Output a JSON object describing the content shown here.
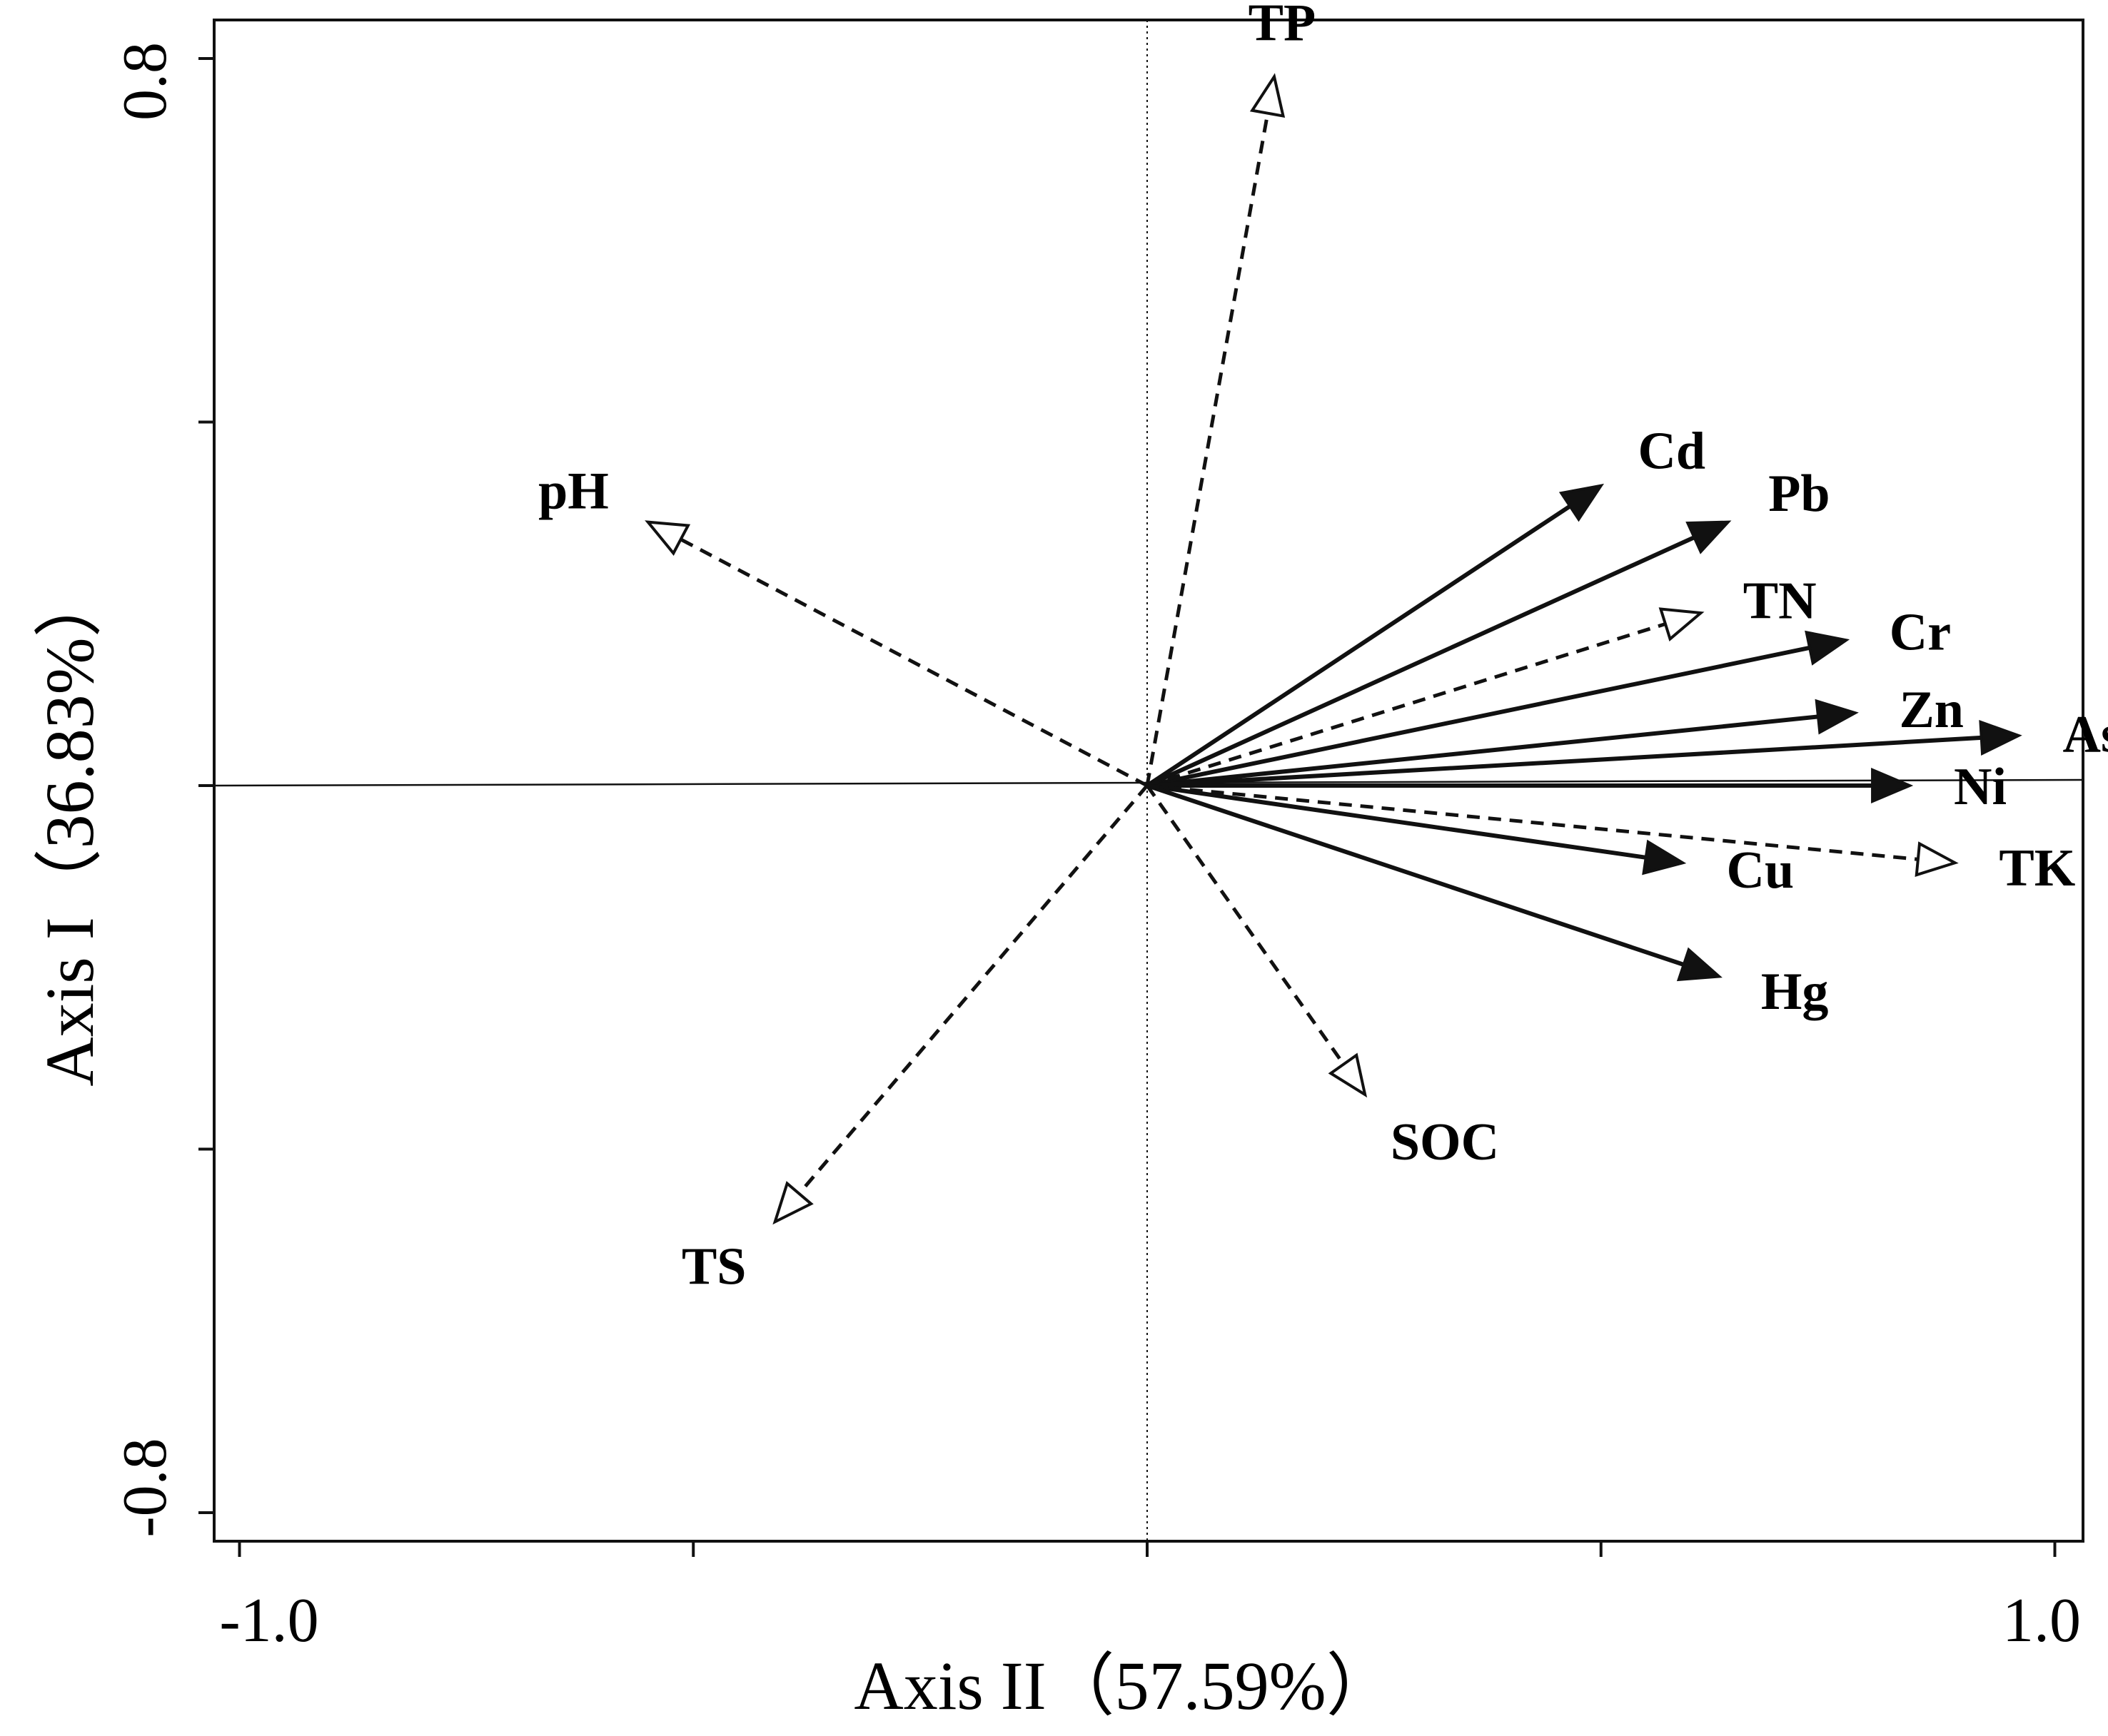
{
  "chart_data": {
    "type": "biplot",
    "title": "",
    "xlabel": "Axis II（57.59%）",
    "ylabel": "Axis I（36.83%）",
    "xlim": [
      -1.0,
      1.0
    ],
    "ylim": [
      -0.8,
      0.8
    ],
    "x_tick_labels": [
      "-1.0",
      "1.0"
    ],
    "y_tick_labels": [
      "0.8",
      "-0.8"
    ],
    "series": [
      {
        "name": "",
        "style": "solid-filled-arrow",
        "vectors": [
          {
            "label": "Cd",
            "x": 0.5,
            "y": 0.33
          },
          {
            "label": "Pb",
            "x": 0.64,
            "y": 0.29
          },
          {
            "label": "Cr",
            "x": 0.77,
            "y": 0.16
          },
          {
            "label": "Zn",
            "x": 0.78,
            "y": 0.08
          },
          {
            "label": "As",
            "x": 0.96,
            "y": 0.055
          },
          {
            "label": "Ni",
            "x": 0.84,
            "y": 0.0
          },
          {
            "label": "Cu",
            "x": 0.59,
            "y": -0.085
          },
          {
            "label": "Hg",
            "x": 0.63,
            "y": -0.21
          }
        ]
      },
      {
        "name": "",
        "style": "dashed-open-arrow",
        "vectors": [
          {
            "label": "TP",
            "x": 0.14,
            "y": 0.78
          },
          {
            "label": "pH",
            "x": -0.55,
            "y": 0.29
          },
          {
            "label": "TN",
            "x": 0.61,
            "y": 0.19
          },
          {
            "label": "TK",
            "x": 0.89,
            "y": -0.085
          },
          {
            "label": "SOC",
            "x": 0.24,
            "y": -0.34
          },
          {
            "label": "TS",
            "x": -0.41,
            "y": -0.48
          }
        ]
      }
    ],
    "grid": false,
    "reference_lines": [
      "x=0 dotted",
      "y=0 solid"
    ],
    "colors": {
      "line": "#111111",
      "arrow_fill": "#111111",
      "open_arrow_fill": "#ffffff"
    }
  }
}
